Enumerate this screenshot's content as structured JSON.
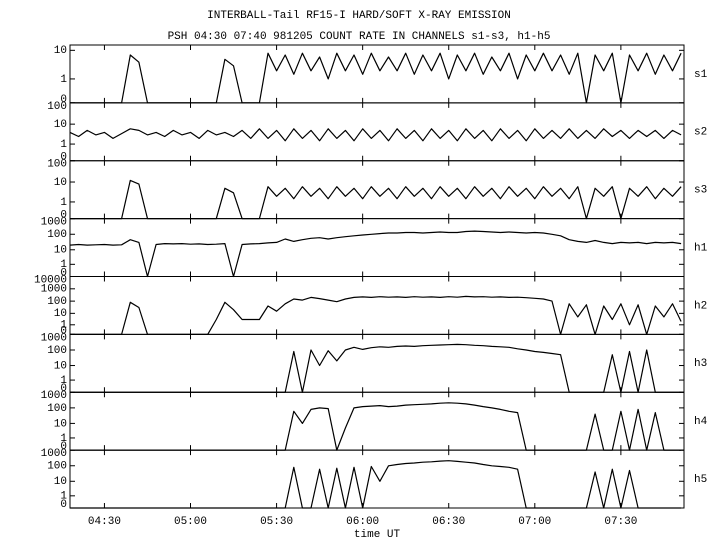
{
  "chart_data": {
    "type": "line",
    "title": "INTERBALL-Tail RF15-I HARD/SOFT X-RAY EMISSION",
    "subtitle": "PSH 04:30 07:40 981205  COUNT RATE IN CHANNELS s1-s3, h1-h5",
    "xlabel": "time UT",
    "yscale": "log",
    "color": "#000000",
    "xlim": [
      258,
      472
    ],
    "xticks": [
      {
        "value": 270,
        "label": "04:30"
      },
      {
        "value": 300,
        "label": "05:00"
      },
      {
        "value": 330,
        "label": "05:30"
      },
      {
        "value": 360,
        "label": "06:00"
      },
      {
        "value": 390,
        "label": "06:30"
      },
      {
        "value": 420,
        "label": "07:00"
      },
      {
        "value": 450,
        "label": "07:30"
      }
    ],
    "x": [
      258,
      261,
      264,
      267,
      270,
      273,
      276,
      279,
      282,
      285,
      288,
      291,
      294,
      297,
      300,
      303,
      306,
      309,
      312,
      315,
      318,
      321,
      324,
      327,
      330,
      333,
      336,
      339,
      342,
      345,
      348,
      351,
      354,
      357,
      360,
      363,
      366,
      369,
      372,
      375,
      378,
      381,
      384,
      387,
      390,
      393,
      396,
      399,
      402,
      405,
      408,
      411,
      414,
      417,
      420,
      423,
      426,
      429,
      432,
      435,
      438,
      441,
      444,
      447,
      450,
      453,
      456,
      459,
      462,
      465,
      468,
      471
    ],
    "series": [
      {
        "name": "s1",
        "ylim": [
          0,
          15
        ],
        "yticks": [
          0,
          1,
          10
        ],
        "values": [
          0,
          0,
          0,
          0,
          0,
          0,
          0,
          7,
          4,
          0,
          0,
          0,
          0,
          0,
          0,
          0,
          0,
          0,
          5,
          3,
          0,
          0,
          0,
          8,
          2,
          7,
          1.5,
          8,
          2,
          6,
          1,
          8,
          2,
          7,
          1.5,
          8,
          2,
          6,
          2,
          8,
          1.5,
          7,
          2,
          8,
          1,
          7,
          2,
          8,
          1.5,
          6,
          2,
          8,
          1,
          7,
          2,
          8,
          2,
          7,
          1.5,
          8,
          0,
          7,
          2,
          8,
          0,
          7,
          2,
          8,
          1.5,
          7,
          2,
          8
        ]
      },
      {
        "name": "s2",
        "ylim": [
          0,
          100
        ],
        "yticks": [
          0,
          1,
          10,
          100
        ],
        "values": [
          4,
          2.5,
          5,
          3,
          4,
          2,
          3.5,
          6,
          5,
          3,
          4,
          2.5,
          5,
          3,
          4,
          2,
          5,
          3,
          4,
          2.5,
          5,
          2,
          6,
          2,
          5,
          1.5,
          6,
          2,
          5,
          1.5,
          6,
          2,
          5,
          1.5,
          6,
          2,
          5,
          1.5,
          6,
          2,
          5,
          1.5,
          6,
          2,
          5,
          1.5,
          6,
          2,
          5,
          1.5,
          6,
          2,
          5,
          1.5,
          6,
          2,
          5,
          2,
          6,
          2,
          5,
          2,
          6,
          2.5,
          5,
          2,
          5,
          2.5,
          5,
          2,
          5,
          3
        ]
      },
      {
        "name": "s3",
        "ylim": [
          0,
          100
        ],
        "yticks": [
          0,
          1,
          10,
          100
        ],
        "values": [
          0,
          0,
          0,
          0,
          0,
          0,
          0,
          12,
          8,
          0,
          0,
          0,
          0,
          0,
          0,
          0,
          0,
          0,
          5,
          3,
          0,
          0,
          0,
          6,
          2,
          5,
          1.5,
          6,
          2,
          5,
          1.5,
          6,
          2,
          5,
          1.5,
          6,
          2,
          5,
          1.5,
          6,
          2,
          5,
          1.5,
          6,
          2,
          5,
          1.5,
          6,
          2,
          5,
          1.5,
          6,
          2,
          5,
          1.5,
          6,
          2,
          5,
          1.5,
          6,
          0,
          5,
          2,
          6,
          0,
          5,
          2,
          6,
          1.5,
          5,
          2,
          6
        ]
      },
      {
        "name": "h1",
        "ylim": [
          0,
          1000
        ],
        "yticks": [
          0,
          1,
          10,
          100,
          1000
        ],
        "values": [
          20,
          22,
          20,
          21,
          22,
          20,
          21,
          45,
          30,
          0,
          22,
          25,
          24,
          25,
          23,
          24,
          22,
          23,
          25,
          0,
          22,
          24,
          25,
          28,
          30,
          50,
          35,
          45,
          55,
          60,
          50,
          60,
          70,
          80,
          90,
          100,
          110,
          120,
          120,
          130,
          130,
          120,
          130,
          140,
          130,
          130,
          150,
          160,
          150,
          140,
          130,
          140,
          130,
          120,
          130,
          120,
          100,
          80,
          45,
          35,
          30,
          40,
          30,
          25,
          30,
          28,
          30,
          25,
          30,
          28,
          30,
          25
        ]
      },
      {
        "name": "h2",
        "ylim": [
          0,
          10000
        ],
        "yticks": [
          0,
          1,
          10,
          100,
          1000,
          10000
        ],
        "values": [
          0,
          0,
          0,
          0,
          0,
          0,
          0,
          80,
          30,
          0,
          0,
          0,
          0,
          0,
          0,
          0,
          0,
          3,
          80,
          20,
          3,
          3,
          3,
          40,
          15,
          60,
          150,
          120,
          200,
          160,
          120,
          90,
          150,
          200,
          220,
          200,
          230,
          210,
          220,
          200,
          230,
          210,
          220,
          200,
          230,
          210,
          240,
          220,
          230,
          210,
          220,
          200,
          210,
          190,
          170,
          150,
          100,
          0,
          60,
          5,
          50,
          0,
          40,
          3,
          60,
          1,
          50,
          0,
          40,
          5,
          60,
          2
        ]
      },
      {
        "name": "h3",
        "ylim": [
          0,
          1000
        ],
        "yticks": [
          0,
          1,
          10,
          100,
          1000
        ],
        "values": [
          0,
          0,
          0,
          0,
          0,
          0,
          0,
          0,
          0,
          0,
          0,
          0,
          0,
          0,
          0,
          0,
          0,
          0,
          0,
          0,
          0,
          0,
          0,
          0,
          0,
          0,
          80,
          0,
          100,
          10,
          90,
          20,
          100,
          150,
          110,
          140,
          160,
          150,
          170,
          180,
          170,
          190,
          200,
          210,
          220,
          230,
          220,
          200,
          190,
          170,
          160,
          150,
          120,
          100,
          80,
          70,
          60,
          50,
          0,
          0,
          0,
          0,
          0,
          50,
          0,
          80,
          0,
          100,
          0,
          0,
          0,
          0
        ]
      },
      {
        "name": "h4",
        "ylim": [
          0,
          1000
        ],
        "yticks": [
          0,
          1,
          10,
          100,
          1000
        ],
        "values": [
          0,
          0,
          0,
          0,
          0,
          0,
          0,
          0,
          0,
          0,
          0,
          0,
          0,
          0,
          0,
          0,
          0,
          0,
          0,
          0,
          0,
          0,
          0,
          0,
          0,
          0,
          60,
          10,
          80,
          100,
          90,
          0,
          5,
          100,
          120,
          130,
          140,
          120,
          130,
          150,
          160,
          170,
          180,
          200,
          210,
          200,
          180,
          150,
          120,
          100,
          80,
          60,
          50,
          0,
          0,
          0,
          0,
          0,
          0,
          0,
          0,
          40,
          0,
          0,
          60,
          0,
          80,
          0,
          50,
          0,
          0,
          0
        ]
      },
      {
        "name": "h5",
        "ylim": [
          0,
          1000
        ],
        "yticks": [
          0,
          1,
          10,
          100,
          1000
        ],
        "values": [
          0,
          0,
          0,
          0,
          0,
          0,
          0,
          0,
          0,
          0,
          0,
          0,
          0,
          0,
          0,
          0,
          0,
          0,
          0,
          0,
          0,
          0,
          0,
          0,
          0,
          0,
          80,
          0,
          0,
          60,
          0,
          70,
          0,
          80,
          0,
          90,
          10,
          100,
          120,
          140,
          150,
          170,
          180,
          200,
          210,
          190,
          170,
          150,
          120,
          100,
          90,
          80,
          60,
          0,
          0,
          0,
          0,
          0,
          0,
          0,
          0,
          40,
          0,
          60,
          0,
          50,
          0,
          0,
          0,
          0,
          0,
          0
        ]
      }
    ]
  }
}
